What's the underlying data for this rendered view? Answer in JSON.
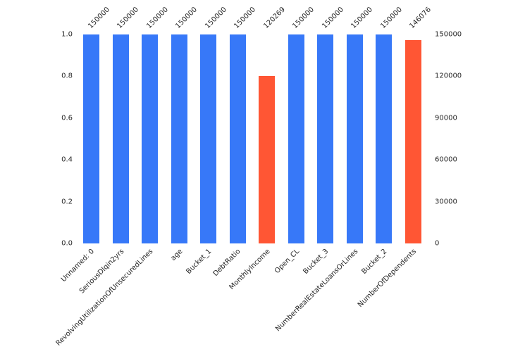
{
  "figure": {
    "background_color": "#ffffff",
    "text_color": "#262626"
  },
  "chart_data": {
    "type": "bar",
    "title": "",
    "xlabel": "",
    "ylabel": "",
    "categories": [
      "Unnamed: 0",
      "SeriousDlqin2yrs",
      "RevolvingUtilizationOfUnsecuredLines",
      "age",
      "Bucket_1",
      "DebtRatio",
      "MonthlyIncome",
      "Open_CL",
      "Bucket_3",
      "NumberRealEstateLoansOrLines",
      "Bucket_2",
      "NumberOfDependents"
    ],
    "values": [
      150000,
      150000,
      150000,
      150000,
      150000,
      150000,
      120269,
      150000,
      150000,
      150000,
      150000,
      146076
    ],
    "bar_value_labels": [
      "150000",
      "150000",
      "150000",
      "150000",
      "150000",
      "150000",
      "120269",
      "150000",
      "150000",
      "150000",
      "150000",
      "146076"
    ],
    "bar_colors": [
      "#3778f8",
      "#3778f8",
      "#3778f8",
      "#3778f8",
      "#3778f8",
      "#3778f8",
      "#ff5634",
      "#3778f8",
      "#3778f8",
      "#3778f8",
      "#3778f8",
      "#ff5634"
    ],
    "color_meaning": {
      "#3778f8": "full-count-bar",
      "#ff5634": "missing-values-bar"
    },
    "left_axis_ticks_top_to_bottom": [
      "1.0",
      "0.8",
      "0.6",
      "0.4",
      "0.2",
      "0.0"
    ],
    "right_axis_ticks_top_to_bottom": [
      "150000",
      "120000",
      "90000",
      "60000",
      "30000",
      "0"
    ],
    "left_axis_range": [
      0.0,
      1.0
    ],
    "right_axis_range": [
      0,
      150000
    ],
    "ylim": [
      0,
      150000
    ],
    "grid": false,
    "legend": null,
    "bar_label_rotation_deg": 45,
    "x_tick_label_rotation_deg": 45
  }
}
